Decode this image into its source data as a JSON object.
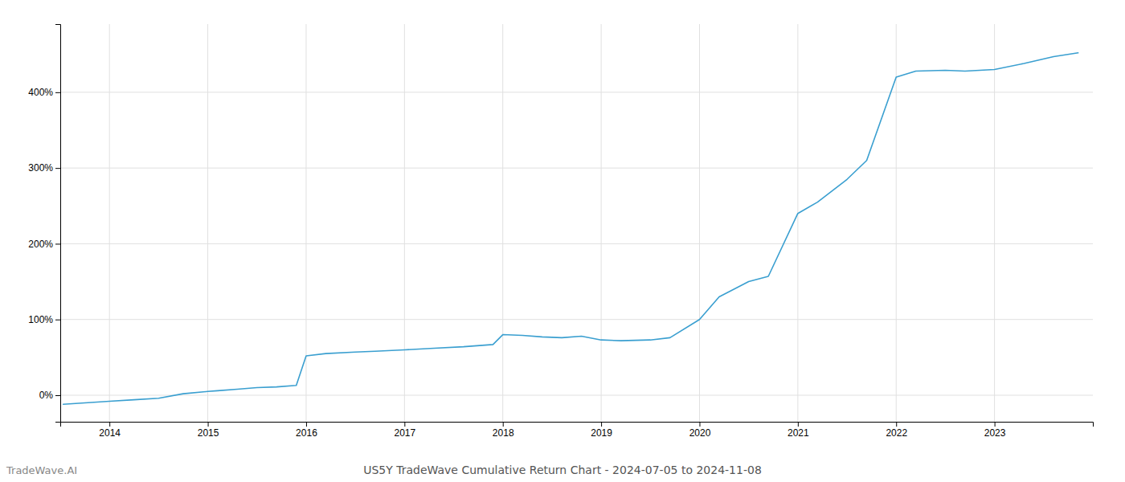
{
  "chart_data": {
    "type": "line",
    "title": "US5Y TradeWave Cumulative Return Chart - 2024-07-05 to 2024-11-08",
    "annotations": [
      "TradeWave.AI"
    ],
    "color": "#3a9fd0",
    "x": [
      2013.53,
      2013.75,
      2014.0,
      2014.25,
      2014.5,
      2014.75,
      2015.0,
      2015.1,
      2015.3,
      2015.5,
      2015.7,
      2015.9,
      2016.0,
      2016.2,
      2016.5,
      2016.7,
      2017.0,
      2017.3,
      2017.6,
      2017.9,
      2018.0,
      2018.2,
      2018.4,
      2018.6,
      2018.8,
      2019.0,
      2019.2,
      2019.5,
      2019.7,
      2020.0,
      2020.2,
      2020.5,
      2020.7,
      2021.0,
      2021.2,
      2021.5,
      2021.7,
      2022.0,
      2022.2,
      2022.5,
      2022.7,
      2023.0,
      2023.3,
      2023.6,
      2023.85
    ],
    "values": [
      -12,
      -10,
      -8,
      -6,
      -4,
      2,
      5,
      6,
      8,
      10,
      11,
      13,
      52,
      55,
      57,
      58,
      60,
      62,
      64,
      67,
      80,
      79,
      77,
      76,
      78,
      73,
      72,
      73,
      76,
      100,
      130,
      150,
      157,
      240,
      255,
      285,
      310,
      420,
      428,
      429,
      428,
      430,
      438,
      447,
      452
    ],
    "xlim": [
      2013.5,
      2024.0
    ],
    "xticks": [
      2014,
      2015,
      2016,
      2017,
      2018,
      2019,
      2020,
      2021,
      2022,
      2023
    ],
    "ylim": [
      -35,
      490
    ],
    "yticks": [
      {
        "value": 0,
        "label": "0%"
      },
      {
        "value": 100,
        "label": "100%"
      },
      {
        "value": 200,
        "label": "200%"
      },
      {
        "value": 300,
        "label": "300%"
      },
      {
        "value": 400,
        "label": "400%"
      }
    ],
    "grid": true
  }
}
